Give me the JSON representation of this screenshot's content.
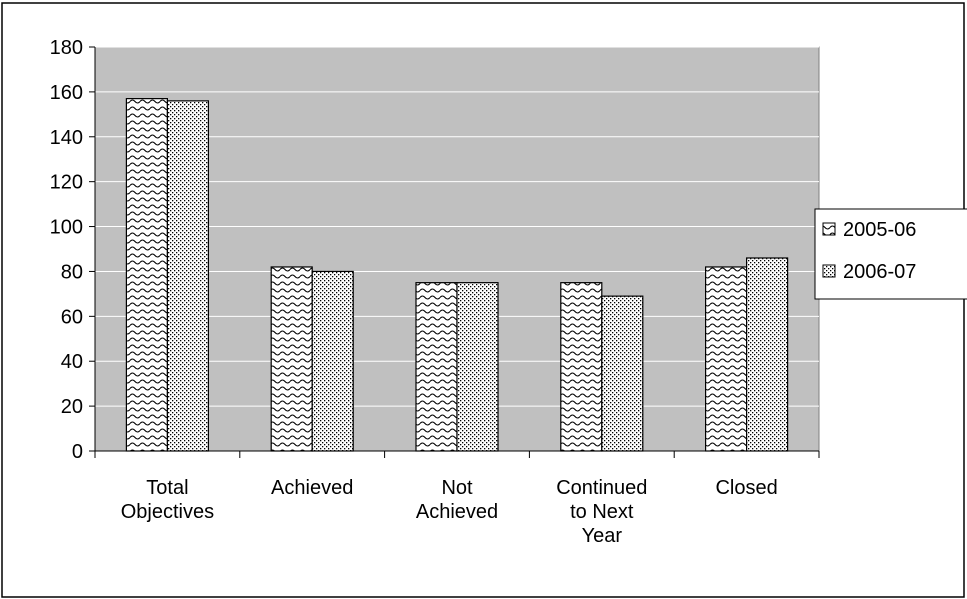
{
  "chart_data": {
    "type": "bar",
    "title": "",
    "xlabel": "",
    "ylabel": "",
    "categories": [
      [
        "Total",
        "Objectives"
      ],
      [
        "Achieved"
      ],
      [
        "Not",
        "Achieved"
      ],
      [
        "Continued",
        "to Next",
        "Year"
      ],
      [
        "Closed"
      ]
    ],
    "series": [
      {
        "name": "2005-06",
        "values": [
          157,
          82,
          75,
          75,
          82
        ],
        "pattern": "wave"
      },
      {
        "name": "2006-07",
        "values": [
          156,
          80,
          75,
          69,
          86
        ],
        "pattern": "dots"
      }
    ],
    "ylim": [
      0,
      180
    ],
    "yticks": [
      0,
      20,
      40,
      60,
      80,
      100,
      120,
      140,
      160,
      180
    ],
    "grid": true,
    "legend_position": "right",
    "colors": {
      "plot_background": "#c0c0c0",
      "gridline": "#ffffff",
      "bar_fill": "#ffffff",
      "bar_pattern": "#000000"
    }
  }
}
